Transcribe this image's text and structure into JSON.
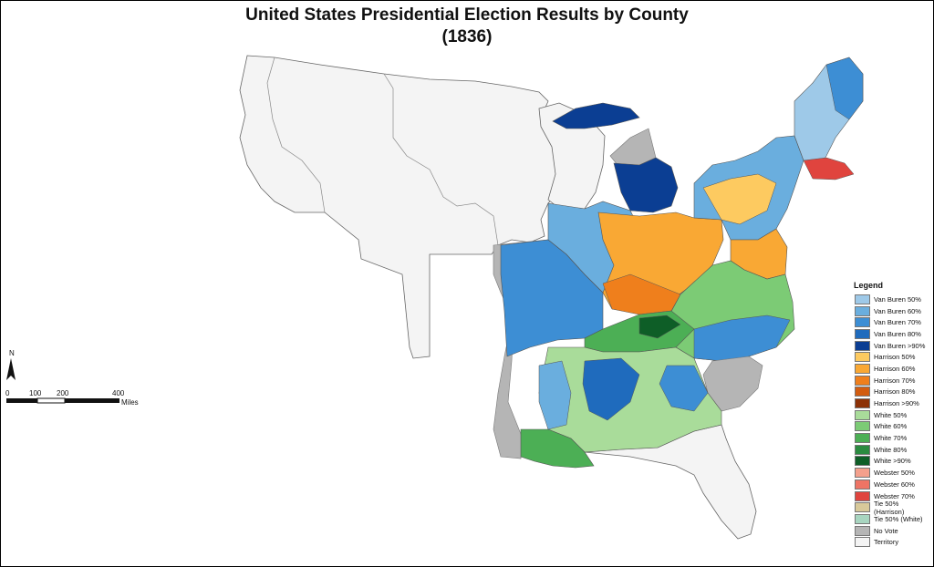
{
  "title": {
    "line1": "United States Presidential Election Results by County",
    "line2": "(1836)"
  },
  "legend": {
    "title": "Legend",
    "items": [
      {
        "label": "Van Buren 50%",
        "color": "#9ec9e8"
      },
      {
        "label": "Van Buren 60%",
        "color": "#6aaede"
      },
      {
        "label": "Van Buren 70%",
        "color": "#3d8ed4"
      },
      {
        "label": "Van Buren 80%",
        "color": "#1f6bbd"
      },
      {
        "label": "Van Buren >90%",
        "color": "#0b3e93"
      },
      {
        "label": "Harrison 50%",
        "color": "#fdca60"
      },
      {
        "label": "Harrison 60%",
        "color": "#f9a834"
      },
      {
        "label": "Harrison 70%",
        "color": "#ef7f1c"
      },
      {
        "label": "Harrison 80%",
        "color": "#d25c10"
      },
      {
        "label": "Harrison >90%",
        "color": "#8c3106"
      },
      {
        "label": "White 50%",
        "color": "#a9dc9a"
      },
      {
        "label": "White 60%",
        "color": "#7ccb75"
      },
      {
        "label": "White 70%",
        "color": "#4caf55"
      },
      {
        "label": "White 80%",
        "color": "#2b8b40"
      },
      {
        "label": "White >90%",
        "color": "#0e5e27"
      },
      {
        "label": "Webster 50%",
        "color": "#f4a08c"
      },
      {
        "label": "Webster 60%",
        "color": "#ee7465"
      },
      {
        "label": "Webster 70%",
        "color": "#e0443e"
      },
      {
        "label": "Tie 50% (Harrison)",
        "color": "#d8c99a"
      },
      {
        "label": "Tie 50% (White)",
        "color": "#a8d5c0"
      },
      {
        "label": "No Vote",
        "color": "#b5b5b5"
      },
      {
        "label": "Territory",
        "color": "#f4f4f4"
      }
    ]
  },
  "scale": {
    "north": "N",
    "ticks": [
      "0",
      "100",
      "200",
      "400"
    ],
    "unit": "Miles"
  },
  "colors": {
    "territory": "#f4f4f4",
    "no_vote": "#b5b5b5",
    "border": "#555555"
  }
}
